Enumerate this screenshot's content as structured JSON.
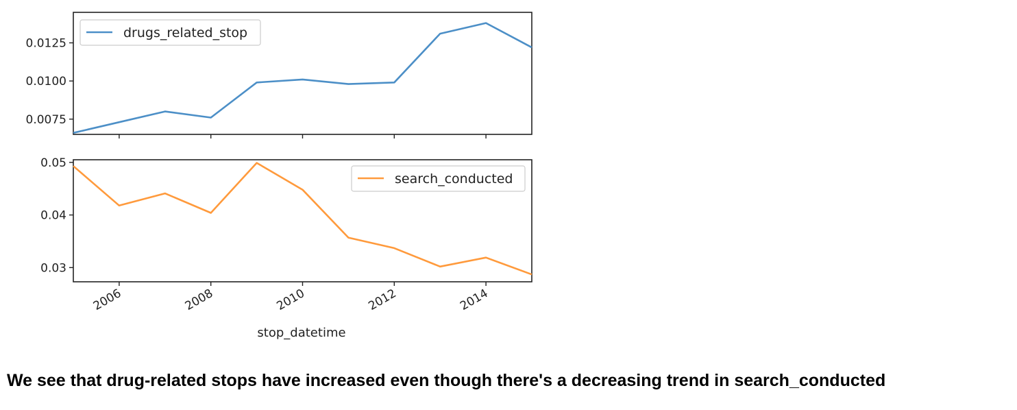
{
  "caption": "We see that drug-related stops have increased even though there's a decreasing trend in search_conducted",
  "chart_data": {
    "type": "line",
    "layout": "two vertically stacked subplots sharing the x axis",
    "xlabel": "stop_datetime",
    "x": [
      2005,
      2006,
      2007,
      2008,
      2009,
      2010,
      2011,
      2012,
      2013,
      2014,
      2015
    ],
    "xlim": [
      2005,
      2015
    ],
    "xticks": [
      2006,
      2008,
      2010,
      2012,
      2014
    ],
    "xtick_labels": [
      "2006",
      "2008",
      "2010",
      "2012",
      "2014"
    ],
    "grid": false,
    "subplots": [
      {
        "series": [
          {
            "name": "drugs_related_stop",
            "color": "#4c8fc7",
            "values": [
              0.0066,
              0.0073,
              0.008,
              0.0076,
              0.0099,
              0.0101,
              0.0098,
              0.0099,
              0.0131,
              0.0138,
              0.0122
            ]
          }
        ],
        "ylim": [
          0.0065,
          0.0145
        ],
        "yticks": [
          0.0075,
          0.01,
          0.0125
        ],
        "ytick_labels": [
          "0.0075",
          "0.0100",
          "0.0125"
        ],
        "legend_position": "upper left"
      },
      {
        "series": [
          {
            "name": "search_conducted",
            "color": "#ff9a3c",
            "values": [
              0.0493,
              0.0418,
              0.0441,
              0.0404,
              0.0499,
              0.0448,
              0.0357,
              0.0337,
              0.0302,
              0.0319,
              0.0287
            ]
          }
        ],
        "ylim": [
          0.0273,
          0.0505
        ],
        "yticks": [
          0.03,
          0.04,
          0.05
        ],
        "ytick_labels": [
          "0.03",
          "0.04",
          "0.05"
        ],
        "legend_position": "upper right"
      }
    ]
  }
}
